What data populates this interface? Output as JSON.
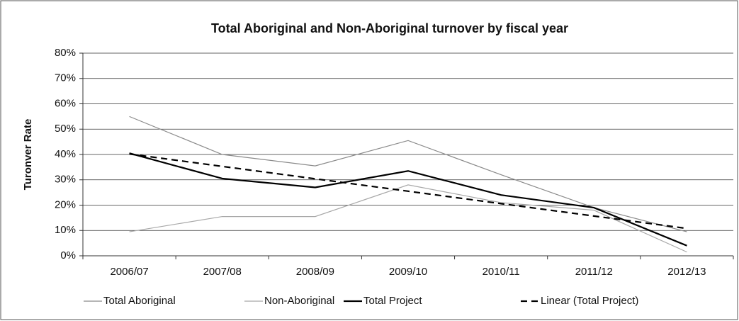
{
  "chart_data": {
    "type": "line",
    "title": "Total Aboriginal and Non-Aboriginal turnover by fiscal year",
    "y_label": "Turonver Rate",
    "categories": [
      "2006/07",
      "2007/08",
      "2008/09",
      "2009/10",
      "2010/11",
      "2011/12",
      "2012/13"
    ],
    "series": [
      {
        "name": "Total Aboriginal",
        "color": "#8a8a8a",
        "width": 1.2,
        "dashed": false,
        "values": [
          55,
          40,
          35.5,
          45.5,
          32,
          19,
          9.5
        ]
      },
      {
        "name": "Non-Aboriginal",
        "color": "#a8a8a8",
        "width": 1.2,
        "dashed": false,
        "values": [
          9.5,
          15.5,
          15.5,
          28,
          21,
          18,
          1.5
        ]
      },
      {
        "name": "Total Project",
        "color": "#000000",
        "width": 2.2,
        "dashed": false,
        "values": [
          40.5,
          30.5,
          27,
          33.5,
          24,
          19,
          4
        ]
      },
      {
        "name": "Linear (Total Project)",
        "color": "#000000",
        "width": 2.2,
        "dashed": true,
        "values": [
          40.2,
          35.3,
          30.4,
          25.5,
          20.6,
          15.7,
          10.8
        ]
      }
    ],
    "ylim": [
      0,
      80
    ],
    "yticks": [
      {
        "value": 0,
        "label": "0%"
      },
      {
        "value": 10,
        "label": "10%"
      },
      {
        "value": 20,
        "label": "20%"
      },
      {
        "value": 30,
        "label": "30%"
      },
      {
        "value": 40,
        "label": "40%"
      },
      {
        "value": 50,
        "label": "50%"
      },
      {
        "value": 60,
        "label": "60%"
      },
      {
        "value": 70,
        "label": "70%"
      },
      {
        "value": 80,
        "label": "80%"
      }
    ],
    "grid": true,
    "legend": "bottom"
  }
}
